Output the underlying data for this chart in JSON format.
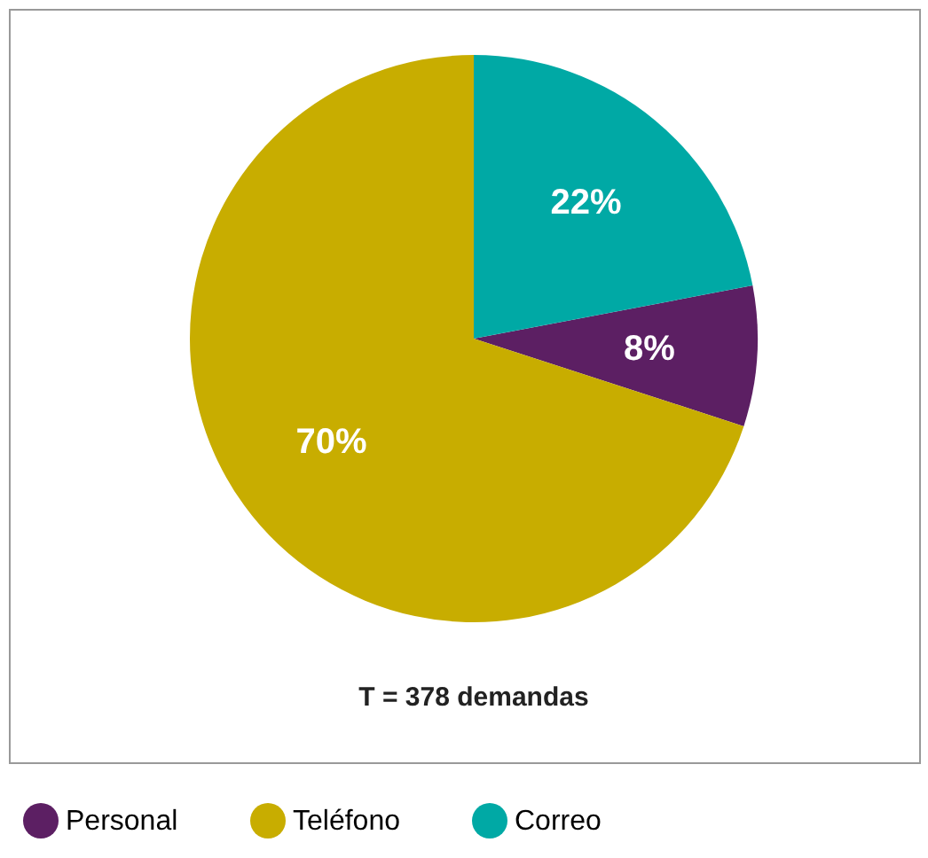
{
  "chart_data": {
    "type": "pie",
    "categories": [
      "Personal",
      "Teléfono",
      "Correo"
    ],
    "values": [
      8,
      70,
      22
    ],
    "colors": [
      "#5c1f63",
      "#c8ad00",
      "#00a9a5"
    ],
    "value_labels": [
      "8%",
      "70%",
      "22%"
    ],
    "legend": "bottom",
    "annotations": [
      "T = 378 demandas"
    ]
  }
}
